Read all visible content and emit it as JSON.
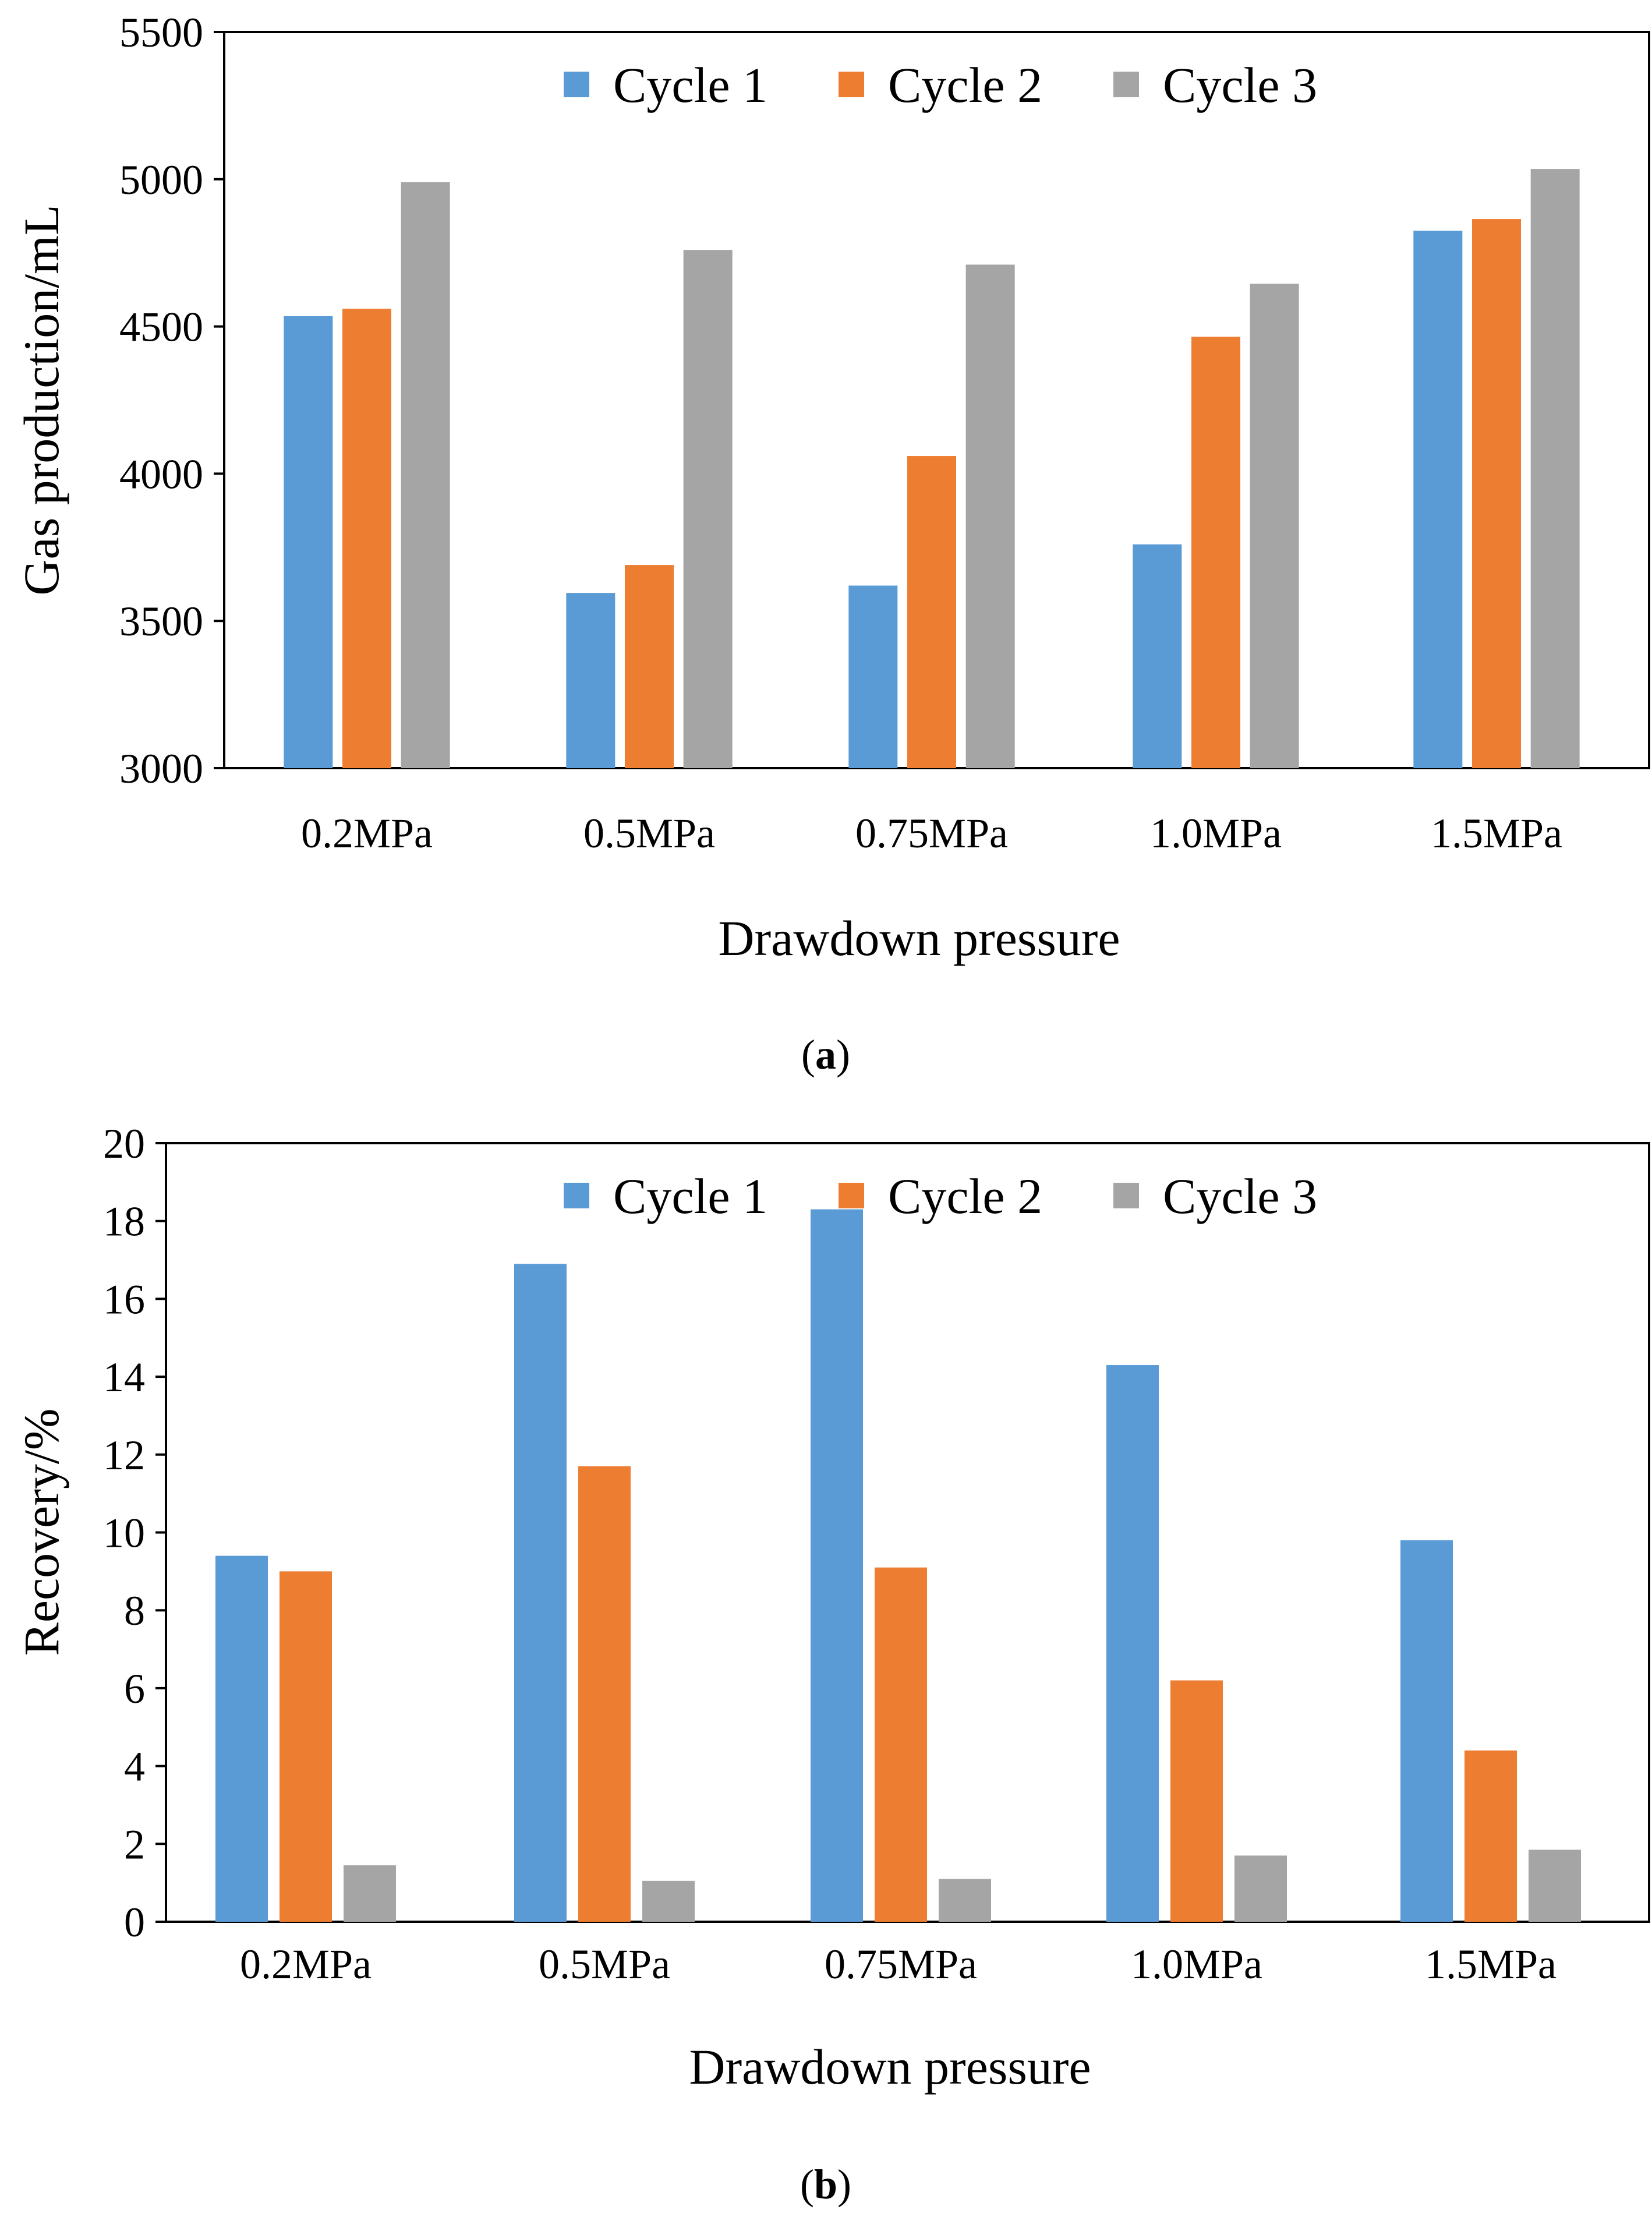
{
  "chart_data": [
    {
      "type": "bar",
      "categories": [
        "0.2MPa",
        "0.5MPa",
        "0.75MPa",
        "1.0MPa",
        "1.5MPa"
      ],
      "series": [
        {
          "name": "Cycle 1",
          "color": "#5b9bd5",
          "values": [
            4535,
            3595,
            3620,
            3760,
            4825
          ]
        },
        {
          "name": "Cycle 2",
          "color": "#ed7d31",
          "values": [
            4560,
            3690,
            4060,
            4465,
            4865
          ]
        },
        {
          "name": "Cycle 3",
          "color": "#a5a5a5",
          "values": [
            4990,
            4760,
            4710,
            4645,
            5035
          ]
        }
      ],
      "xlabel": "Drawdown pressure",
      "ylabel": "Gas production/mL",
      "ylim": [
        3000,
        5500
      ],
      "yticks": [
        3000,
        3500,
        4000,
        4500,
        5000,
        5500
      ],
      "legend": "top-center",
      "grid": false,
      "caption_open": "(",
      "caption_letter": "a",
      "caption_close": ")"
    },
    {
      "type": "bar",
      "categories": [
        "0.2MPa",
        "0.5MPa",
        "0.75MPa",
        "1.0MPa",
        "1.5MPa"
      ],
      "series": [
        {
          "name": "Cycle 1",
          "color": "#5b9bd5",
          "values": [
            9.4,
            16.9,
            18.3,
            14.3,
            9.8
          ]
        },
        {
          "name": "Cycle 2",
          "color": "#ed7d31",
          "values": [
            9.0,
            11.7,
            9.1,
            6.2,
            4.4
          ]
        },
        {
          "name": "Cycle 3",
          "color": "#a5a5a5",
          "values": [
            1.45,
            1.05,
            1.1,
            1.7,
            1.85
          ]
        }
      ],
      "xlabel": "Drawdown pressure",
      "ylabel": "Recovery/%",
      "ylim": [
        0,
        20
      ],
      "yticks": [
        0,
        2,
        4,
        6,
        8,
        10,
        12,
        14,
        16,
        18,
        20
      ],
      "legend": "top-center",
      "grid": false,
      "caption_open": "(",
      "caption_letter": "b",
      "caption_close": ")"
    }
  ]
}
